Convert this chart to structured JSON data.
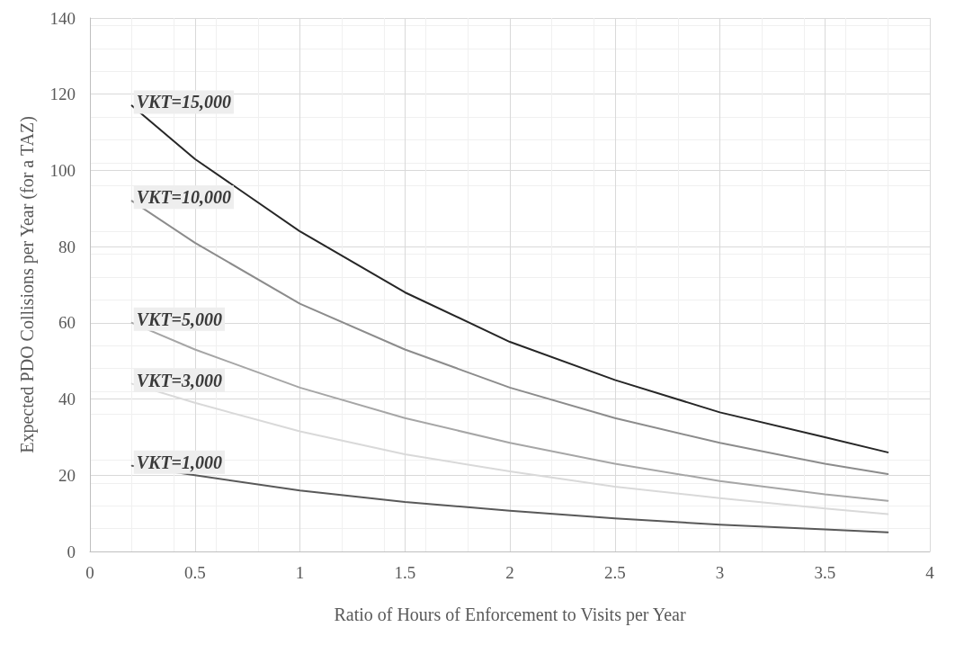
{
  "chart_data": {
    "type": "line",
    "xlabel": "Ratio of Hours of Enforcement to Visits per Year",
    "ylabel": "Expected PDO Collisions per Year (for a TAZ)",
    "x": [
      0.2,
      0.5,
      1,
      1.5,
      2,
      2.5,
      3,
      3.5,
      3.8
    ],
    "series": [
      {
        "name": "VKT=15,000",
        "color": "#262626",
        "values": [
          117,
          103,
          84,
          68,
          55,
          45,
          36.5,
          30,
          26
        ]
      },
      {
        "name": "VKT=10,000",
        "color": "#8c8c8c",
        "values": [
          92,
          81,
          65,
          53,
          43,
          35,
          28.5,
          23,
          20.3
        ]
      },
      {
        "name": "VKT=5,000",
        "color": "#a6a6a6",
        "values": [
          60,
          53,
          43,
          35,
          28.5,
          23,
          18.5,
          15,
          13.3
        ]
      },
      {
        "name": "VKT=3,000",
        "color": "#d9d9d9",
        "values": [
          44,
          39,
          31.5,
          25.5,
          21,
          17,
          14,
          11.3,
          9.8
        ]
      },
      {
        "name": "VKT=1,000",
        "color": "#595959",
        "values": [
          22.5,
          20,
          16,
          13,
          10.7,
          8.7,
          7,
          5.8,
          5
        ]
      }
    ],
    "xlim": [
      0,
      4
    ],
    "xticks": [
      0,
      0.5,
      1,
      1.5,
      2,
      2.5,
      3,
      3.5,
      4
    ],
    "ylim": [
      0,
      140
    ],
    "yticks": [
      0,
      20,
      40,
      60,
      80,
      100,
      120,
      140
    ],
    "grid": true,
    "legend": false,
    "marker": "none",
    "line_style": "solid"
  }
}
